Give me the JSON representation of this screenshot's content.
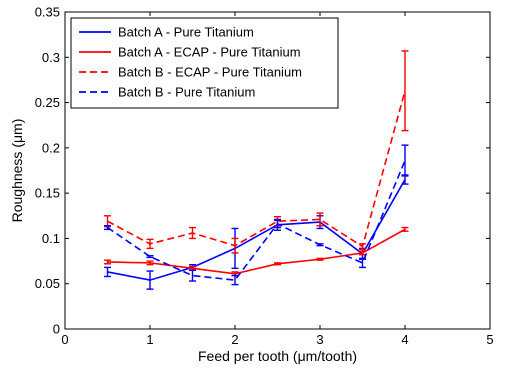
{
  "chart_data": {
    "type": "line",
    "title": "",
    "xlabel": "Feed per tooth (μm/tooth)",
    "ylabel": "Roughness (μm)",
    "xlim": [
      0,
      5
    ],
    "ylim": [
      0,
      0.35
    ],
    "xticks": [
      0,
      1,
      2,
      3,
      4,
      5
    ],
    "xtick_labels": [
      "0",
      "1",
      "2",
      "3",
      "4",
      "5"
    ],
    "yticks": [
      0,
      0.05,
      0.1,
      0.15,
      0.2,
      0.25,
      0.3,
      0.35
    ],
    "ytick_labels": [
      "0",
      "0.05",
      "0.1",
      "0.15",
      "0.2",
      "0.25",
      "0.3",
      "0.35"
    ],
    "grid": false,
    "legend_position": "top-left",
    "x": [
      0.5,
      1,
      1.5,
      2,
      2.5,
      3,
      3.5,
      4
    ],
    "series": [
      {
        "name": "Batch A - Pure Titanium",
        "color": "#0000ff",
        "dash": "solid",
        "y": [
          0.063,
          0.054,
          0.068,
          0.089,
          0.115,
          0.118,
          0.083,
          0.165
        ],
        "err": [
          0.005,
          0.01,
          0.003,
          0.022,
          0.006,
          0.007,
          0.006,
          0.005
        ]
      },
      {
        "name": "Batch A - ECAP - Pure Titanium",
        "color": "#ff0000",
        "dash": "solid",
        "y": [
          0.074,
          0.073,
          0.067,
          0.061,
          0.072,
          0.077,
          0.084,
          0.11
        ],
        "err": [
          0.002,
          0.002,
          0.002,
          0.002,
          0.001,
          0.001,
          0.002,
          0.002
        ]
      },
      {
        "name": "Batch B - ECAP - Pure Titanium",
        "color": "#ff0000",
        "dash": "dashed",
        "y": [
          0.119,
          0.094,
          0.106,
          0.092,
          0.119,
          0.121,
          0.091,
          0.263
        ],
        "err": [
          0.006,
          0.005,
          0.006,
          0.008,
          0.005,
          0.007,
          0.003,
          0.044
        ]
      },
      {
        "name": "Batch B - Pure Titanium",
        "color": "#0000ff",
        "dash": "dashed",
        "y": [
          0.112,
          0.08,
          0.059,
          0.054,
          0.116,
          0.093,
          0.073,
          0.186
        ],
        "err": [
          0.002,
          0.001,
          0.006,
          0.005,
          0.004,
          0.001,
          0.005,
          0.017
        ]
      }
    ]
  }
}
